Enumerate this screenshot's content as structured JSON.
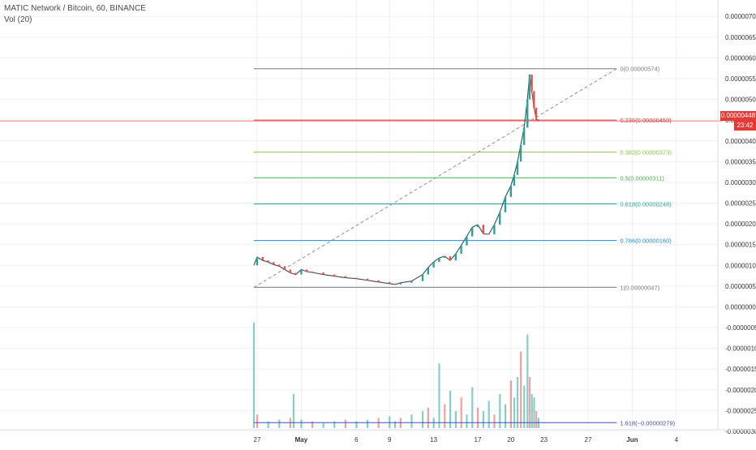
{
  "legend": {
    "symbol": "MATIC Network / Bitcoin, 60, BINANCE",
    "volume_study": "Vol (20)"
  },
  "price_badge": "0.00000448",
  "timer_badge": "23:42",
  "colors": {
    "fib_0": "#787b86",
    "fib_236": "#e53935",
    "fib_382": "#8bc34a",
    "fib_5": "#4caf50",
    "fib_618": "#26a69a",
    "fib_786": "#1e88e5",
    "fib_1": "#787b86",
    "fib_1618": "#3f51b5",
    "up": "#26a69a",
    "down": "#ef5350",
    "grid": "#eef1f4",
    "axis_text": "#333333"
  },
  "chart_data": {
    "type": "line",
    "title": "MATIC Network / Bitcoin, 60, BINANCE",
    "ylim": [
      -3e-06,
      7.2e-06
    ],
    "y_ticks": [
      "0.00000700",
      "0.00000650",
      "0.00000600",
      "0.00000550",
      "0.00000500",
      "0.00000450",
      "0.00000400",
      "0.00000350",
      "0.00000300",
      "0.00000250",
      "0.00000200",
      "0.00000150",
      "0.00000100",
      "0.00000050",
      "0.00000000",
      "-0.00000050",
      "-0.00000100",
      "-0.00000150",
      "-0.00000200",
      "-0.00000250",
      "-0.00000300"
    ],
    "y_tick_values": [
      7e-06,
      6.5e-06,
      6e-06,
      5.5e-06,
      5e-06,
      4.5e-06,
      4e-06,
      3.5e-06,
      3e-06,
      2.5e-06,
      2e-06,
      1.5e-06,
      1e-06,
      5e-07,
      0,
      -5e-07,
      -1e-06,
      -1.5e-06,
      -2e-06,
      -2.5e-06,
      -3e-06
    ],
    "x_ticks": [
      "27",
      "May",
      "6",
      "9",
      "13",
      "17",
      "20",
      "23",
      "27",
      "Jun",
      "4"
    ],
    "x_tick_days": [
      0,
      4,
      9,
      12,
      16,
      20,
      23,
      26,
      30,
      34,
      38
    ],
    "x_tick_bold": [
      false,
      true,
      false,
      false,
      false,
      false,
      false,
      false,
      false,
      true,
      false
    ],
    "fib_levels": [
      {
        "label": "0(0.00000574)",
        "ratio": "0",
        "value": 5.74e-06,
        "color_key": "fib_0"
      },
      {
        "label": "0.236(0.00000450)",
        "ratio": "0.236",
        "value": 4.5e-06,
        "color_key": "fib_236"
      },
      {
        "label": "0.382(0.00000373)",
        "ratio": "0.382",
        "value": 3.73e-06,
        "color_key": "fib_382"
      },
      {
        "label": "0.5(0.00000311)",
        "ratio": "0.5",
        "value": 3.11e-06,
        "color_key": "fib_5"
      },
      {
        "label": "0.618(0.00000248)",
        "ratio": "0.618",
        "value": 2.48e-06,
        "color_key": "fib_618"
      },
      {
        "label": "0.786(0.00000160)",
        "ratio": "0.786",
        "value": 1.6e-06,
        "color_key": "fib_786"
      },
      {
        "label": "1(0.00000047)",
        "ratio": "1",
        "value": 4.7e-07,
        "color_key": "fib_1"
      },
      {
        "label": "1.618(−0.00000279)",
        "ratio": "1.618",
        "value": -2.79e-06,
        "color_key": "fib_1618"
      }
    ],
    "fib_start_day": -0.3,
    "fib_end_day": 32.6,
    "trend_line": {
      "from": [
        -0.3,
        4.7e-07
      ],
      "to": [
        32.6,
        5.74e-06
      ]
    },
    "current_price": 4.48e-06,
    "price_path": [
      [
        -0.3,
        1e-06
      ],
      [
        0,
        1.2e-06
      ],
      [
        0.5,
        1.12e-06
      ],
      [
        1,
        1.08e-06
      ],
      [
        1.5,
        1.02e-06
      ],
      [
        2,
        9.8e-07
      ],
      [
        2.5,
        9e-07
      ],
      [
        3,
        8.2e-07
      ],
      [
        3.5,
        7.8e-07
      ],
      [
        4,
        9e-07
      ],
      [
        4.5,
        8.5e-07
      ],
      [
        5,
        8.3e-07
      ],
      [
        6,
        7.8e-07
      ],
      [
        7,
        7.4e-07
      ],
      [
        8,
        7e-07
      ],
      [
        9,
        6.8e-07
      ],
      [
        10,
        6.4e-07
      ],
      [
        11,
        6e-07
      ],
      [
        12,
        5.6e-07
      ],
      [
        12.5,
        5.4e-07
      ],
      [
        13,
        5.8e-07
      ],
      [
        14,
        6.2e-07
      ],
      [
        15,
        7.8e-07
      ],
      [
        15.5,
        9.5e-07
      ],
      [
        16,
        1.08e-06
      ],
      [
        16.5,
        1.18e-06
      ],
      [
        17,
        1.22e-06
      ],
      [
        17.5,
        1.12e-06
      ],
      [
        18,
        1.28e-06
      ],
      [
        18.5,
        1.48e-06
      ],
      [
        19,
        1.7e-06
      ],
      [
        19.5,
        1.92e-06
      ],
      [
        20,
        1.98e-06
      ],
      [
        20.5,
        1.76e-06
      ],
      [
        21,
        1.75e-06
      ],
      [
        21.5,
        1.98e-06
      ],
      [
        22,
        2.28e-06
      ],
      [
        22.5,
        2.65e-06
      ],
      [
        23,
        2.92e-06
      ],
      [
        23.3,
        3.18e-06
      ],
      [
        23.6,
        3.5e-06
      ],
      [
        23.9,
        3.9e-06
      ],
      [
        24.2,
        4.32e-06
      ],
      [
        24.5,
        5e-06
      ],
      [
        24.7,
        5.6e-06
      ],
      [
        24.9,
        5.2e-06
      ],
      [
        25.1,
        4.8e-06
      ],
      [
        25.3,
        4.52e-06
      ],
      [
        25.5,
        4.48e-06
      ]
    ],
    "volume_bars": [
      [
        -0.3,
        0.62
      ],
      [
        0,
        0.08
      ],
      [
        1,
        0.04
      ],
      [
        2,
        0.05
      ],
      [
        3,
        0.06
      ],
      [
        3.3,
        0.2
      ],
      [
        4,
        0.05
      ],
      [
        5,
        0.04
      ],
      [
        6,
        0.03
      ],
      [
        7,
        0.04
      ],
      [
        8,
        0.05
      ],
      [
        9,
        0.04
      ],
      [
        10,
        0.05
      ],
      [
        11,
        0.06
      ],
      [
        12,
        0.07
      ],
      [
        12.5,
        0.04
      ],
      [
        13,
        0.06
      ],
      [
        14,
        0.08
      ],
      [
        15,
        0.1
      ],
      [
        15.5,
        0.12
      ],
      [
        16,
        0.06
      ],
      [
        16.5,
        0.38
      ],
      [
        17,
        0.14
      ],
      [
        17.5,
        0.22
      ],
      [
        18,
        0.1
      ],
      [
        18.5,
        0.18
      ],
      [
        19,
        0.08
      ],
      [
        19.5,
        0.24
      ],
      [
        20,
        0.12
      ],
      [
        20.5,
        0.1
      ],
      [
        21,
        0.16
      ],
      [
        21.5,
        0.08
      ],
      [
        22,
        0.2
      ],
      [
        22.5,
        0.14
      ],
      [
        23,
        0.28
      ],
      [
        23.3,
        0.18
      ],
      [
        23.6,
        0.3
      ],
      [
        23.9,
        0.45
      ],
      [
        24.2,
        0.25
      ],
      [
        24.5,
        0.55
      ],
      [
        24.7,
        0.3
      ],
      [
        24.9,
        0.2
      ],
      [
        25.1,
        0.18
      ],
      [
        25.3,
        0.1
      ],
      [
        25.5,
        0.06
      ]
    ]
  }
}
